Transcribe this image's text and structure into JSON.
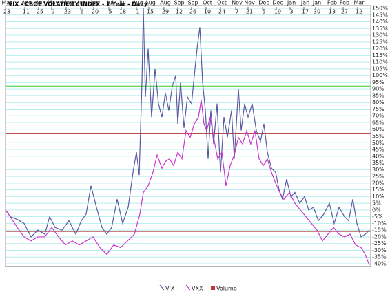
{
  "chart_data": {
    "type": "line",
    "title": "VIX - CBOE VOLATILITY INDEX - 1 Year - Daily",
    "series": [
      {
        "name": "VIX",
        "color": "#5a5a9e",
        "x": [
          0,
          7,
          17,
          27,
          37,
          47,
          57,
          64,
          72,
          82,
          92,
          102,
          110,
          117,
          124,
          132,
          140,
          147,
          154,
          162,
          170,
          178,
          185,
          190,
          194,
          198,
          200,
          203,
          207,
          212,
          217,
          222,
          227,
          232,
          237,
          242,
          247,
          250,
          254,
          259,
          264,
          270,
          274,
          278,
          282,
          286,
          290,
          294,
          298,
          302,
          307,
          312,
          317,
          322,
          328,
          332,
          338,
          342,
          347,
          352,
          358,
          364,
          370,
          375,
          380,
          386,
          392,
          397,
          402,
          408,
          414,
          420,
          427,
          434,
          440,
          447,
          454,
          462,
          470,
          477,
          484,
          492,
          498,
          504,
          510,
          516,
          522,
          528
        ],
        "values": [
          0,
          -5,
          -7,
          -10,
          -20,
          -15,
          -18,
          -5,
          -13,
          -15,
          -8,
          -18,
          -8,
          -3,
          18,
          2,
          -13,
          -18,
          -13,
          8,
          -10,
          2,
          28,
          43,
          26,
          95,
          150,
          84,
          120,
          69,
          105,
          79,
          69,
          87,
          74,
          92,
          100,
          64,
          95,
          61,
          84,
          79,
          100,
          120,
          136,
          95,
          74,
          38,
          74,
          49,
          79,
          28,
          69,
          54,
          74,
          38,
          90,
          59,
          79,
          69,
          79,
          59,
          51,
          64,
          43,
          31,
          28,
          15,
          8,
          23,
          10,
          13,
          5,
          10,
          0,
          2,
          -8,
          -3,
          5,
          -10,
          2,
          -5,
          -8,
          8,
          -10,
          -20,
          -18,
          -15
        ]
      },
      {
        "name": "VXX",
        "color": "#cc33cc",
        "x": [
          0,
          7,
          17,
          27,
          37,
          47,
          57,
          67,
          77,
          87,
          97,
          107,
          117,
          127,
          137,
          147,
          157,
          167,
          177,
          187,
          195,
          200,
          207,
          214,
          220,
          227,
          232,
          238,
          244,
          250,
          256,
          262,
          268,
          274,
          280,
          284,
          288,
          292,
          297,
          302,
          308,
          314,
          320,
          326,
          332,
          338,
          344,
          350,
          356,
          362,
          368,
          374,
          380,
          386,
          392,
          398,
          404,
          412,
          420,
          428,
          436,
          444,
          452,
          460,
          468,
          476,
          484,
          492,
          500,
          508,
          516,
          522,
          528
        ],
        "values": [
          0,
          -5,
          -13,
          -20,
          -23,
          -20,
          -20,
          -13,
          -20,
          -26,
          -23,
          -26,
          -23,
          -20,
          -28,
          -33,
          -26,
          -28,
          -23,
          -18,
          -3,
          13,
          18,
          28,
          41,
          31,
          36,
          38,
          33,
          43,
          38,
          59,
          54,
          64,
          69,
          82,
          64,
          59,
          69,
          54,
          38,
          43,
          18,
          33,
          41,
          54,
          49,
          59,
          49,
          59,
          38,
          33,
          38,
          28,
          20,
          13,
          8,
          13,
          5,
          0,
          -5,
          -10,
          -15,
          -23,
          -18,
          -13,
          -18,
          -20,
          -18,
          -26,
          -28,
          -33,
          -41
        ]
      }
    ],
    "legend_extra": {
      "name": "Volume",
      "color": "#cc3333"
    },
    "xlim": [
      0,
      530
    ],
    "xticks": [
      {
        "value": 0,
        "label": "23"
      },
      {
        "value": 28,
        "label": "11"
      },
      {
        "value": 48,
        "label": "25"
      },
      {
        "value": 67,
        "label": "9"
      },
      {
        "value": 88,
        "label": "23"
      },
      {
        "value": 109,
        "label": "6"
      },
      {
        "value": 128,
        "label": "20"
      },
      {
        "value": 150,
        "label": "5"
      },
      {
        "value": 168,
        "label": "18"
      },
      {
        "value": 190,
        "label": "1"
      },
      {
        "value": 208,
        "label": "15"
      },
      {
        "value": 230,
        "label": "29"
      },
      {
        "value": 250,
        "label": "12"
      },
      {
        "value": 270,
        "label": "26"
      },
      {
        "value": 291,
        "label": "10"
      },
      {
        "value": 312,
        "label": "24"
      },
      {
        "value": 334,
        "label": "7"
      },
      {
        "value": 352,
        "label": "21"
      },
      {
        "value": 373,
        "label": "5"
      },
      {
        "value": 393,
        "label": "19"
      },
      {
        "value": 413,
        "label": "3"
      },
      {
        "value": 433,
        "label": "17"
      },
      {
        "value": 450,
        "label": "30"
      },
      {
        "value": 472,
        "label": "13"
      },
      {
        "value": 490,
        "label": "27"
      },
      {
        "value": 511,
        "label": "12"
      }
    ],
    "xtick_months": [
      "Mar",
      "Apr",
      "Apr",
      "May",
      "May",
      "Jun",
      "Jun",
      "Jul",
      "Jul",
      "Aug",
      "Aug",
      "Aug",
      "Sep",
      "Sep",
      "Oct",
      "Oct",
      "Nov",
      "Nov",
      "Dec",
      "Dec",
      "Jan",
      "Jan",
      "Jan",
      "Feb",
      "Feb",
      "Mar"
    ],
    "ylim": [
      -40,
      150
    ],
    "yticks": [
      {
        "value": 150,
        "label": "150%"
      },
      {
        "value": 145,
        "label": "145%"
      },
      {
        "value": 140,
        "label": "140%"
      },
      {
        "value": 135,
        "label": "135%"
      },
      {
        "value": 130,
        "label": "130%"
      },
      {
        "value": 125,
        "label": "125%"
      },
      {
        "value": 120,
        "label": "120%"
      },
      {
        "value": 115,
        "label": "115%"
      },
      {
        "value": 110,
        "label": "110%"
      },
      {
        "value": 105,
        "label": "105%"
      },
      {
        "value": 100,
        "label": "100%"
      },
      {
        "value": 95,
        "label": "95%"
      },
      {
        "value": 90,
        "label": "90%"
      },
      {
        "value": 85,
        "label": "85%"
      },
      {
        "value": 80,
        "label": "80%"
      },
      {
        "value": 75,
        "label": "75%"
      },
      {
        "value": 70,
        "label": "70%"
      },
      {
        "value": 65,
        "label": "65%"
      },
      {
        "value": 60,
        "label": "60%"
      },
      {
        "value": 55,
        "label": "55%"
      },
      {
        "value": 50,
        "label": "50%"
      },
      {
        "value": 45,
        "label": "45%"
      },
      {
        "value": 40,
        "label": "40%"
      },
      {
        "value": 35,
        "label": "35%"
      },
      {
        "value": 30,
        "label": "30%"
      },
      {
        "value": 25,
        "label": "25%"
      },
      {
        "value": 20,
        "label": "20%"
      },
      {
        "value": 15,
        "label": "15%"
      },
      {
        "value": 10,
        "label": "10%"
      },
      {
        "value": 5,
        "label": "5%"
      },
      {
        "value": 0,
        "label": "0%"
      },
      {
        "value": -5,
        "label": "-5%"
      },
      {
        "value": -10,
        "label": "-10%"
      },
      {
        "value": -15,
        "label": "-15%"
      },
      {
        "value": -20,
        "label": "-20%"
      },
      {
        "value": -25,
        "label": "-25%"
      },
      {
        "value": -30,
        "label": "-30%"
      },
      {
        "value": -35,
        "label": "-35%"
      },
      {
        "value": -40,
        "label": "-40%"
      }
    ],
    "grid": true,
    "grid_color": "#b5eeee",
    "reference_lines": [
      {
        "value": 92,
        "color": "#33cc33"
      },
      {
        "value": 57,
        "color": "#b03030"
      },
      {
        "value": -16,
        "color": "#b03030"
      },
      {
        "value": -42,
        "color": "#6a3a8a"
      }
    ]
  }
}
